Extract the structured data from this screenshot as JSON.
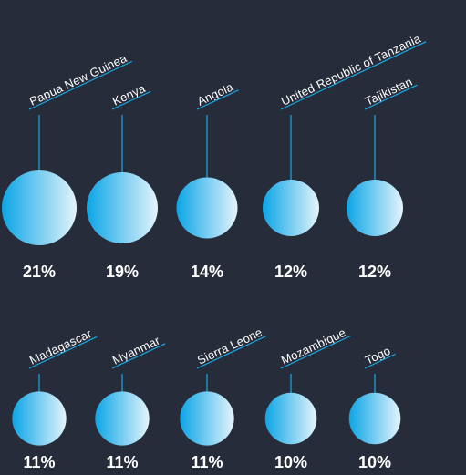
{
  "chart_data": {
    "type": "bubble",
    "series": [
      {
        "values": [
          21,
          19,
          14,
          12,
          12,
          11,
          11,
          11,
          10,
          10
        ]
      }
    ],
    "categories": [
      "Papua New Guinea",
      "Kenya",
      "Angola",
      "United Republic of Tanzania",
      "Tajikistan",
      "Madagascar",
      "Myanmar",
      "Sierra Leone",
      "Mozambique",
      "Togo"
    ],
    "value_labels": [
      "21%",
      "19%",
      "14%",
      "12%",
      "12%",
      "11%",
      "11%",
      "11%",
      "10%",
      "10%"
    ],
    "unit": "%"
  },
  "colors": {
    "background": "#262c3a",
    "line": "#1aa9e6",
    "bubble_light": "#e5f4fb",
    "bubble_dark": "#0ba5e6",
    "text": "#ffffff"
  }
}
